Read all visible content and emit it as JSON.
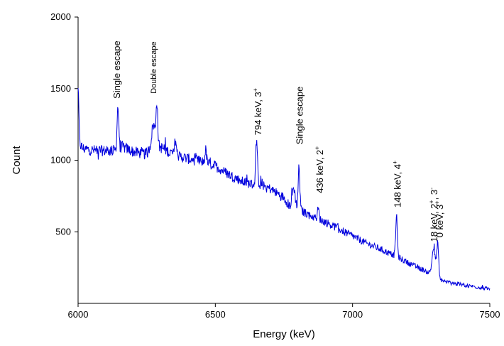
{
  "chart_data": {
    "type": "line",
    "xlabel": "Energy (keV)",
    "ylabel": "Count",
    "xlim": [
      6000,
      7500
    ],
    "ylim": [
      0,
      2000
    ],
    "x_ticks": [
      6000,
      6500,
      7000,
      7500
    ],
    "y_ticks": [
      500,
      1000,
      1500,
      2000
    ],
    "x_tick_labels": [
      "6000",
      "6500",
      "7000",
      "7500"
    ],
    "y_tick_labels": [
      "500",
      "1000",
      "1500",
      "2000"
    ],
    "grid": false,
    "line_color": "#0000dd",
    "baseline": [
      [
        6000,
        1230
      ],
      [
        6005,
        1110
      ],
      [
        6020,
        1080
      ],
      [
        6050,
        1070
      ],
      [
        6100,
        1065
      ],
      [
        6140,
        1070
      ],
      [
        6160,
        1095
      ],
      [
        6200,
        1060
      ],
      [
        6250,
        1040
      ],
      [
        6270,
        1120
      ],
      [
        6300,
        1090
      ],
      [
        6350,
        1040
      ],
      [
        6400,
        1010
      ],
      [
        6450,
        990
      ],
      [
        6500,
        960
      ],
      [
        6550,
        900
      ],
      [
        6600,
        850
      ],
      [
        6640,
        830
      ],
      [
        6660,
        840
      ],
      [
        6700,
        800
      ],
      [
        6750,
        740
      ],
      [
        6770,
        680
      ],
      [
        6790,
        690
      ],
      [
        6810,
        650
      ],
      [
        6850,
        610
      ],
      [
        6900,
        570
      ],
      [
        6950,
        520
      ],
      [
        7000,
        470
      ],
      [
        7050,
        420
      ],
      [
        7100,
        380
      ],
      [
        7140,
        345
      ],
      [
        7160,
        330
      ],
      [
        7200,
        285
      ],
      [
        7250,
        240
      ],
      [
        7280,
        215
      ],
      [
        7300,
        250
      ],
      [
        7320,
        165
      ],
      [
        7350,
        145
      ],
      [
        7400,
        130
      ],
      [
        7450,
        115
      ],
      [
        7500,
        100
      ]
    ],
    "peaks": [
      {
        "x": 6000,
        "height": 260,
        "width": 3
      },
      {
        "x": 6145,
        "height": 300,
        "width": 3
      },
      {
        "x": 6275,
        "height": 130,
        "width": 6
      },
      {
        "x": 6287,
        "height": 300,
        "width": 3
      },
      {
        "x": 6355,
        "height": 110,
        "width": 3
      },
      {
        "x": 6465,
        "height": 90,
        "width": 3
      },
      {
        "x": 6650,
        "height": 310,
        "width": 3
      },
      {
        "x": 6785,
        "height": 120,
        "width": 5
      },
      {
        "x": 6805,
        "height": 290,
        "width": 3
      },
      {
        "x": 6875,
        "height": 70,
        "width": 3
      },
      {
        "x": 7160,
        "height": 280,
        "width": 3
      },
      {
        "x": 7295,
        "height": 145,
        "width": 5
      },
      {
        "x": 7310,
        "height": 230,
        "width": 3
      }
    ],
    "annotations": [
      {
        "x": 6152,
        "y": 1430,
        "text": "Single escape",
        "small": false
      },
      {
        "x": 6285,
        "y": 1465,
        "text": "Double escape",
        "small": true
      },
      {
        "x": 6667,
        "y": 1175,
        "text": "794 keV, 3",
        "sup": "+",
        "small": false
      },
      {
        "x": 6818,
        "y": 1110,
        "text": "Single escape",
        "small": false
      },
      {
        "x": 6892,
        "y": 770,
        "text": "436 keV, 2",
        "sup": "+",
        "small": false
      },
      {
        "x": 7175,
        "y": 670,
        "text": "148 keV, 4",
        "sup": "+",
        "small": false
      },
      {
        "x": 7308,
        "y": 430,
        "text": "18 keV, 2",
        "sup": "+",
        "text2": ", 3",
        "sup2": "-",
        "small": false
      },
      {
        "x": 7329,
        "y": 460,
        "text": "0 keV, 3",
        "sup": "+",
        "small": false
      }
    ]
  }
}
